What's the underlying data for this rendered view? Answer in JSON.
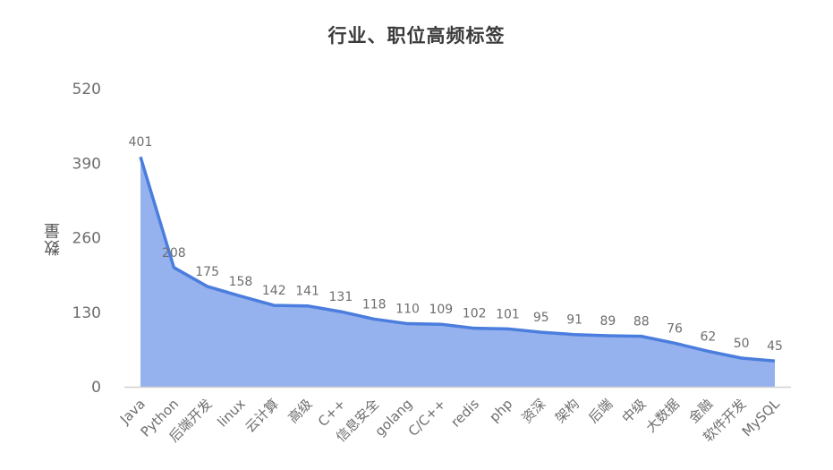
{
  "chart_data": {
    "type": "area",
    "title": "行业、职位高频标签",
    "xlabel": "",
    "ylabel": "数量",
    "ylim": [
      0,
      520
    ],
    "yticks": [
      0,
      130,
      260,
      390,
      520
    ],
    "grid": false,
    "legend": null,
    "data_labels": true,
    "categories": [
      "Java",
      "Python",
      "后端开发",
      "linux",
      "云计算",
      "高级",
      "C++",
      "信息安全",
      "golang",
      "C/C++",
      "redis",
      "php",
      "资深",
      "架构",
      "后端",
      "中级",
      "大数据",
      "金融",
      "软件开发",
      "MySQL"
    ],
    "series": [
      {
        "name": "数量",
        "values": [
          401,
          208,
          175,
          158,
          142,
          141,
          131,
          118,
          110,
          109,
          102,
          101,
          95,
          91,
          89,
          88,
          76,
          62,
          50,
          45
        ]
      }
    ],
    "colors": {
      "line": "#4a7ddd",
      "fill": "#95b1ee",
      "axis": "#d0d0d0",
      "tick_text": "#6e6e6e",
      "label_text": "#6e6e6e",
      "title_text": "#3a3a3a"
    }
  }
}
